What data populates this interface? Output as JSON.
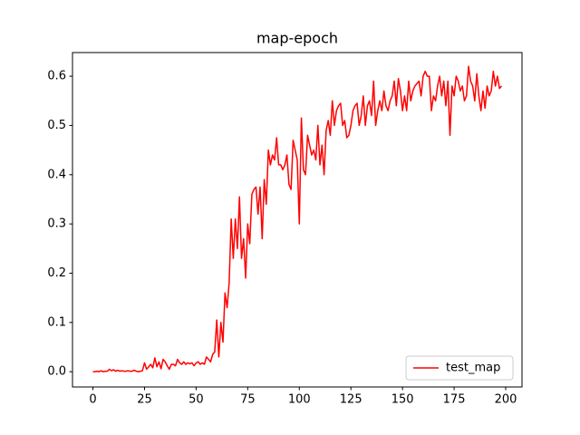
{
  "chart_data": {
    "type": "line",
    "title": "map-epoch",
    "x": [
      0,
      1,
      2,
      3,
      4,
      5,
      6,
      7,
      8,
      9,
      10,
      11,
      12,
      13,
      14,
      15,
      16,
      17,
      18,
      19,
      20,
      21,
      22,
      23,
      24,
      25,
      26,
      27,
      28,
      29,
      30,
      31,
      32,
      33,
      34,
      35,
      36,
      37,
      38,
      39,
      40,
      41,
      42,
      43,
      44,
      45,
      46,
      47,
      48,
      49,
      50,
      51,
      52,
      53,
      54,
      55,
      56,
      57,
      58,
      59,
      60,
      61,
      62,
      63,
      64,
      65,
      66,
      67,
      68,
      69,
      70,
      71,
      72,
      73,
      74,
      75,
      76,
      77,
      78,
      79,
      80,
      81,
      82,
      83,
      84,
      85,
      86,
      87,
      88,
      89,
      90,
      91,
      92,
      93,
      94,
      95,
      96,
      97,
      98,
      99,
      100,
      101,
      102,
      103,
      104,
      105,
      106,
      107,
      108,
      109,
      110,
      111,
      112,
      113,
      114,
      115,
      116,
      117,
      118,
      119,
      120,
      121,
      122,
      123,
      124,
      125,
      126,
      127,
      128,
      129,
      130,
      131,
      132,
      133,
      134,
      135,
      136,
      137,
      138,
      139,
      140,
      141,
      142,
      143,
      144,
      145,
      146,
      147,
      148,
      149,
      150,
      151,
      152,
      153,
      154,
      155,
      156,
      157,
      158,
      159,
      160,
      161,
      162,
      163,
      164,
      165,
      166,
      167,
      168,
      169,
      170,
      171,
      172,
      173,
      174,
      175,
      176,
      177,
      178,
      179,
      180,
      181,
      182,
      183,
      184,
      185,
      186,
      187,
      188,
      189,
      190,
      191,
      192,
      193,
      194,
      195,
      196,
      197,
      198
    ],
    "series": [
      {
        "name": "test_map",
        "color": "#ff0000",
        "values": [
          0,
          0,
          0.001,
          0,
          0.002,
          0,
          0.001,
          0.001,
          0.005,
          0.002,
          0.004,
          0.001,
          0.003,
          0.001,
          0.002,
          0.001,
          0.001,
          0.002,
          0.001,
          0.001,
          0.003,
          0.001,
          0,
          0.001,
          0.002,
          0.018,
          0.005,
          0.01,
          0.015,
          0.008,
          0.028,
          0.01,
          0.02,
          0.006,
          0.025,
          0.02,
          0.012,
          0.005,
          0.015,
          0.015,
          0.012,
          0.025,
          0.018,
          0.015,
          0.02,
          0.015,
          0.018,
          0.016,
          0.018,
          0.012,
          0.018,
          0.02,
          0.015,
          0.018,
          0.015,
          0.03,
          0.025,
          0.02,
          0.035,
          0.04,
          0.105,
          0.03,
          0.1,
          0.06,
          0.16,
          0.13,
          0.18,
          0.31,
          0.23,
          0.31,
          0.25,
          0.355,
          0.23,
          0.27,
          0.19,
          0.3,
          0.26,
          0.36,
          0.37,
          0.375,
          0.32,
          0.375,
          0.27,
          0.39,
          0.34,
          0.45,
          0.42,
          0.44,
          0.43,
          0.475,
          0.42,
          0.42,
          0.41,
          0.42,
          0.44,
          0.38,
          0.37,
          0.47,
          0.45,
          0.43,
          0.3,
          0.515,
          0.41,
          0.4,
          0.48,
          0.46,
          0.44,
          0.45,
          0.43,
          0.5,
          0.42,
          0.46,
          0.4,
          0.49,
          0.51,
          0.48,
          0.55,
          0.5,
          0.53,
          0.54,
          0.545,
          0.5,
          0.51,
          0.475,
          0.48,
          0.5,
          0.53,
          0.54,
          0.545,
          0.5,
          0.52,
          0.56,
          0.5,
          0.54,
          0.55,
          0.52,
          0.59,
          0.5,
          0.53,
          0.55,
          0.53,
          0.57,
          0.54,
          0.53,
          0.55,
          0.56,
          0.59,
          0.54,
          0.595,
          0.57,
          0.53,
          0.56,
          0.53,
          0.59,
          0.55,
          0.57,
          0.58,
          0.585,
          0.59,
          0.56,
          0.6,
          0.61,
          0.6,
          0.6,
          0.53,
          0.56,
          0.55,
          0.58,
          0.6,
          0.56,
          0.59,
          0.54,
          0.59,
          0.48,
          0.58,
          0.56,
          0.6,
          0.59,
          0.57,
          0.58,
          0.55,
          0.56,
          0.62,
          0.59,
          0.58,
          0.55,
          0.605,
          0.56,
          0.53,
          0.57,
          0.535,
          0.58,
          0.56,
          0.57,
          0.61,
          0.58,
          0.6,
          0.575,
          0.58
        ]
      }
    ],
    "xlim": [
      -9.9,
      207.9
    ],
    "xticks": [
      0,
      25,
      50,
      75,
      100,
      125,
      150,
      175,
      200
    ],
    "ylim": [
      -0.031,
      0.648
    ],
    "yticks": [
      {
        "value": 0,
        "label": "0.0"
      },
      0.1,
      0.2,
      0.3,
      0.4,
      0.5,
      0.6
    ],
    "legend": "lower right",
    "grid": false
  }
}
